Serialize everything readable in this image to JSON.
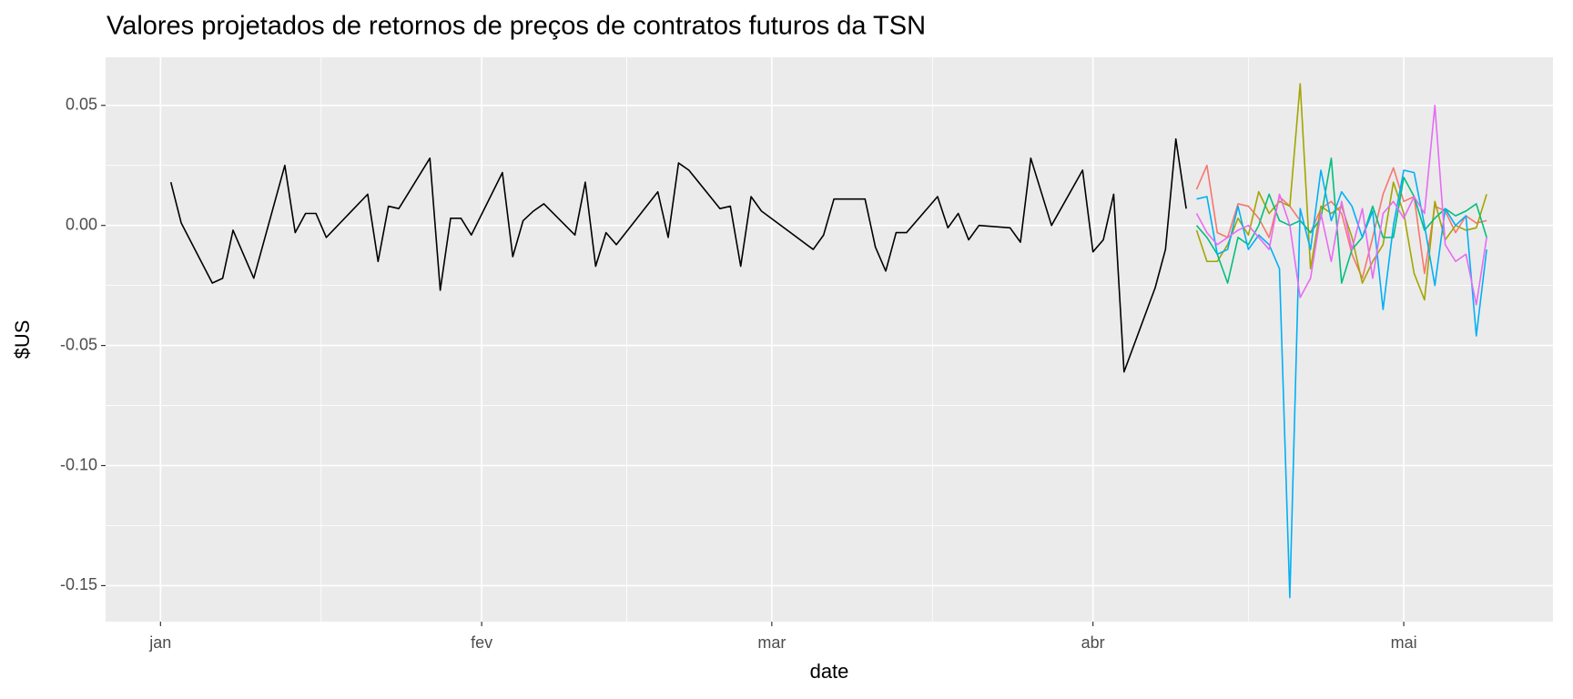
{
  "chart_data": {
    "type": "line",
    "title": "Valores projetados de retornos de preços de contratos futuros da TSN",
    "x_label": "date",
    "y_label": "$US",
    "xlim": [
      -5.3,
      134.4
    ],
    "ylim": [
      -0.165,
      0.07
    ],
    "xticks": [
      {
        "value": 0,
        "label": "jan"
      },
      {
        "value": 31,
        "label": "fev"
      },
      {
        "value": 59,
        "label": "mar"
      },
      {
        "value": 90,
        "label": "abr"
      },
      {
        "value": 120,
        "label": "mai"
      }
    ],
    "yticks": [
      -0.15,
      {
        "value": -0.1,
        "label": "-0.10"
      },
      -0.05,
      {
        "value": 0,
        "label": "0.00"
      },
      0.05
    ],
    "xminor": [
      15.5,
      45,
      74.5,
      105
    ],
    "yminor": [
      -0.125,
      -0.075,
      -0.025,
      0.025
    ],
    "grid": true,
    "series": [
      {
        "color": "#000000",
        "x": [
          1,
          2,
          5,
          6,
          7,
          9,
          12,
          13,
          14,
          15,
          16,
          20,
          21,
          22,
          23,
          26,
          27,
          28,
          29,
          30,
          33,
          34,
          35,
          36,
          37,
          40,
          41,
          42,
          43,
          44,
          48,
          49,
          50,
          51,
          54,
          55,
          56,
          57,
          58,
          63,
          64,
          65,
          68,
          69,
          70,
          71,
          72,
          75,
          76,
          77,
          78,
          79,
          82,
          83,
          84,
          86,
          89,
          90,
          91,
          92,
          93,
          96,
          97,
          98,
          99
        ],
        "values": [
          0.018,
          0.001,
          -0.024,
          -0.022,
          -0.002,
          -0.022,
          0.025,
          -0.003,
          0.005,
          0.005,
          -0.005,
          0.013,
          -0.015,
          0.008,
          0.007,
          0.028,
          -0.027,
          0.003,
          0.003,
          -0.004,
          0.022,
          -0.013,
          0.002,
          0.006,
          0.009,
          -0.004,
          0.018,
          -0.017,
          -0.003,
          -0.008,
          0.014,
          -0.005,
          0.026,
          0.023,
          0.007,
          0.008,
          -0.017,
          0.012,
          0.006,
          -0.01,
          -0.004,
          0.011,
          0.011,
          -0.009,
          -0.019,
          -0.003,
          -0.003,
          0.012,
          -0.001,
          0.005,
          -0.006,
          0,
          -0.001,
          -0.007,
          0.028,
          0,
          0.023,
          -0.011,
          -0.006,
          0.013,
          -0.061,
          -0.026,
          -0.01,
          0.036,
          0.007
        ]
      },
      {
        "color": "#F8766D",
        "x": [
          100,
          101,
          102,
          103,
          104,
          105,
          106,
          107,
          108,
          109,
          110,
          111,
          112,
          113,
          114,
          115,
          116,
          117,
          118,
          119,
          120,
          121,
          122,
          123,
          124,
          125,
          126,
          127,
          128
        ],
        "values": [
          0.015,
          0.025,
          -0.003,
          -0.005,
          0.009,
          0.008,
          0.003,
          -0.005,
          0.012,
          0.008,
          0.002,
          -0.003,
          0.007,
          0.01,
          0.005,
          -0.012,
          -0.022,
          -0.005,
          0.013,
          0.024,
          0.01,
          0.012,
          -0.02,
          0.008,
          0.006,
          -0.003,
          0.004,
          0.001,
          0.002
        ]
      },
      {
        "color": "#A3A500",
        "x": [
          100,
          101,
          102,
          103,
          104,
          105,
          106,
          107,
          108,
          109,
          110,
          111,
          112,
          113,
          114,
          115,
          116,
          117,
          118,
          119,
          120,
          121,
          122,
          123,
          124,
          125,
          126,
          127,
          128
        ],
        "values": [
          -0.002,
          -0.015,
          -0.015,
          -0.008,
          0.003,
          -0.004,
          0.014,
          0.005,
          0.01,
          0.008,
          0.059,
          -0.018,
          0.008,
          0.005,
          0.008,
          -0.005,
          -0.024,
          -0.015,
          -0.008,
          0.018,
          0.005,
          -0.02,
          -0.031,
          0.01,
          -0.006,
          0,
          -0.002,
          -0.001,
          0.013
        ]
      },
      {
        "color": "#00BF7D",
        "x": [
          100,
          101,
          102,
          103,
          104,
          105,
          106,
          107,
          108,
          109,
          110,
          111,
          112,
          113,
          114,
          115,
          116,
          117,
          118,
          119,
          120,
          121,
          122,
          123,
          124,
          125,
          126,
          127,
          128
        ],
        "values": [
          0,
          -0.005,
          -0.012,
          -0.024,
          -0.005,
          -0.008,
          0,
          0.013,
          0.002,
          0,
          0.002,
          -0.003,
          0.003,
          0.028,
          -0.024,
          -0.01,
          -0.005,
          0.008,
          -0.005,
          -0.005,
          0.02,
          0.012,
          -0.002,
          0.003,
          0.007,
          0.004,
          0.006,
          0.009,
          -0.005
        ]
      },
      {
        "color": "#00B0F6",
        "x": [
          100,
          101,
          102,
          103,
          104,
          105,
          106,
          107,
          108,
          109,
          110,
          111,
          112,
          113,
          114,
          115,
          116,
          117,
          118,
          119,
          120,
          121,
          122,
          123,
          124,
          125,
          126,
          127,
          128
        ],
        "values": [
          0.011,
          0.012,
          -0.012,
          -0.01,
          0.008,
          -0.01,
          -0.004,
          -0.008,
          -0.018,
          -0.155,
          0.007,
          -0.01,
          0.023,
          0.002,
          0.014,
          0.008,
          -0.005,
          0.006,
          -0.035,
          0,
          0.023,
          0.022,
          0,
          -0.025,
          0.007,
          0,
          0.004,
          -0.046,
          -0.01
        ]
      },
      {
        "color": "#E76BF3",
        "x": [
          100,
          101,
          102,
          103,
          104,
          105,
          106,
          107,
          108,
          109,
          110,
          111,
          112,
          113,
          114,
          115,
          116,
          117,
          118,
          119,
          120,
          121,
          122,
          123,
          124,
          125,
          126,
          127,
          128
        ],
        "values": [
          0.005,
          -0.003,
          -0.008,
          -0.005,
          -0.002,
          0,
          -0.005,
          -0.01,
          0.013,
          0,
          -0.03,
          -0.022,
          0.005,
          -0.015,
          0.01,
          -0.01,
          0.007,
          -0.022,
          0.005,
          0.01,
          0.003,
          0.012,
          0.005,
          0.05,
          -0.008,
          -0.015,
          -0.012,
          -0.033,
          -0.005
        ]
      }
    ]
  }
}
